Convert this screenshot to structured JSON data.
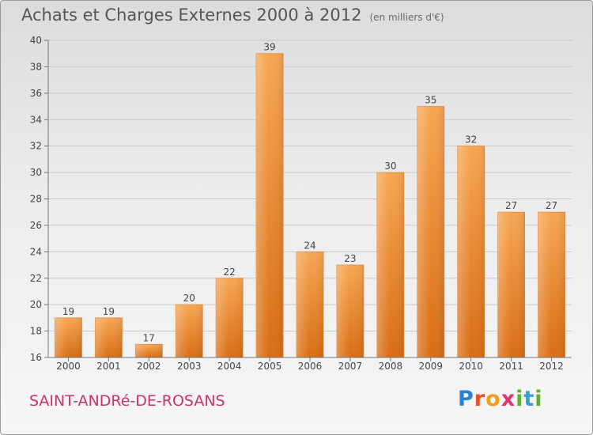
{
  "chart_data": {
    "type": "bar",
    "title": "Achats et Charges Externes 2000 à 2012",
    "subtitle": "(en milliers d'€)",
    "categories": [
      "2000",
      "2001",
      "2002",
      "2003",
      "2004",
      "2005",
      "2006",
      "2007",
      "2008",
      "2009",
      "2010",
      "2011",
      "2012"
    ],
    "values": [
      19,
      19,
      17,
      20,
      22,
      39,
      24,
      23,
      30,
      35,
      32,
      27,
      27
    ],
    "ylim": [
      16,
      40
    ],
    "yticks": [
      16,
      18,
      20,
      22,
      24,
      26,
      28,
      30,
      32,
      34,
      36,
      38,
      40
    ],
    "grid": true,
    "bar_color": "#f08a2a",
    "xlabel": "",
    "ylabel": ""
  },
  "commune": "SAINT-ANDRé-DE-ROSANS",
  "logo": {
    "letters": [
      "P",
      "r",
      "o",
      "x",
      "i",
      "t",
      "i"
    ]
  }
}
